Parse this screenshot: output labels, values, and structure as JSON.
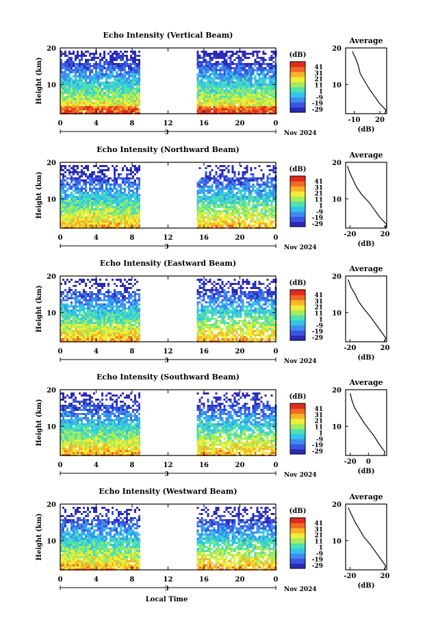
{
  "page": {
    "xlabel": "Local Time",
    "date_label": "3",
    "month_label": "Nov 2024"
  },
  "colorbar": {
    "unit": "(dB)",
    "ticks": [
      "41",
      "31",
      "21",
      "11",
      "1",
      "-9",
      "-19",
      "-29"
    ],
    "range": [
      -29,
      41
    ]
  },
  "colors": {
    "scale": [
      "#2b2ab8",
      "#3a55e0",
      "#3f8cf0",
      "#32c4e8",
      "#4fe0b0",
      "#a8ec5a",
      "#f0ee3a",
      "#f8b428",
      "#f06824",
      "#e02a1e"
    ]
  },
  "chart_data": [
    {
      "type": "heatmap",
      "title": "Echo Intensity (Vertical Beam)",
      "ylabel": "Height (km)",
      "xlabel": "Local Time",
      "x_ticks": [
        "0",
        "4",
        "8",
        "12",
        "16",
        "20",
        "0"
      ],
      "y_ticks": [
        "20",
        "10"
      ],
      "xlim": [
        0,
        24
      ],
      "ylim": [
        2,
        20
      ],
      "data_ranges": [
        [
          0,
          8.8
        ],
        [
          15.2,
          24
        ]
      ],
      "average": {
        "title": "Average",
        "xlabel": "(dB)",
        "x_ticks": [
          "-10",
          "20"
        ],
        "y_ticks": [
          "20",
          "10"
        ],
        "xlim": [
          -20,
          28
        ],
        "heights": [
          19,
          17,
          15,
          13,
          11,
          9,
          7,
          5,
          3,
          2
        ],
        "values": [
          -12,
          -8,
          -5,
          -3,
          2,
          7,
          13,
          19,
          27,
          26
        ]
      }
    },
    {
      "type": "heatmap",
      "title": "Echo Intensity (Northward Beam)",
      "ylabel": "Height (km)",
      "xlabel": "Local Time",
      "x_ticks": [
        "0",
        "4",
        "8",
        "12",
        "16",
        "20",
        "0"
      ],
      "y_ticks": [
        "20",
        "10"
      ],
      "xlim": [
        0,
        24
      ],
      "ylim": [
        2,
        20
      ],
      "data_ranges": [
        [
          0,
          8.8
        ],
        [
          15.2,
          24
        ]
      ],
      "average": {
        "title": "Average",
        "xlabel": "(dB)",
        "x_ticks": [
          "-20",
          "20"
        ],
        "y_ticks": [
          "20",
          "10"
        ],
        "xlim": [
          -25,
          22
        ],
        "heights": [
          19,
          17,
          15,
          13,
          11,
          9,
          7,
          5,
          3,
          2
        ],
        "values": [
          -23,
          -20,
          -16,
          -12,
          -6,
          2,
          8,
          14,
          22,
          20
        ]
      }
    },
    {
      "type": "heatmap",
      "title": "Echo Intensity (Eastward Beam)",
      "ylabel": "Height (km)",
      "xlabel": "Local Time",
      "x_ticks": [
        "0",
        "4",
        "8",
        "12",
        "16",
        "20",
        "0"
      ],
      "y_ticks": [
        "20",
        "10"
      ],
      "xlim": [
        0,
        24
      ],
      "ylim": [
        2,
        20
      ],
      "data_ranges": [
        [
          0,
          8.8
        ],
        [
          15.2,
          24
        ]
      ],
      "average": {
        "title": "Average",
        "xlabel": "(dB)",
        "x_ticks": [
          "-20",
          "20"
        ],
        "y_ticks": [
          "20",
          "10"
        ],
        "xlim": [
          -25,
          22
        ],
        "heights": [
          19,
          17,
          15,
          13,
          11,
          9,
          7,
          5,
          3,
          2
        ],
        "values": [
          -22,
          -19,
          -14,
          -10,
          -4,
          3,
          9,
          15,
          21,
          19
        ]
      }
    },
    {
      "type": "heatmap",
      "title": "Echo Intensity (Southward Beam)",
      "ylabel": "Height (km)",
      "xlabel": "Local Time",
      "x_ticks": [
        "0",
        "4",
        "8",
        "12",
        "16",
        "20",
        "0"
      ],
      "y_ticks": [
        "20",
        "10"
      ],
      "xlim": [
        0,
        24
      ],
      "ylim": [
        2,
        20
      ],
      "data_ranges": [
        [
          0,
          8.8
        ],
        [
          15.2,
          24
        ]
      ],
      "average": {
        "title": "Average",
        "xlabel": "(dB)",
        "x_ticks": [
          "-20",
          "0"
        ],
        "y_ticks": [
          "20",
          "10"
        ],
        "xlim": [
          -25,
          20
        ],
        "heights": [
          19,
          17,
          15,
          13,
          11,
          9,
          7,
          5,
          3,
          2
        ],
        "values": [
          -20,
          -18,
          -15,
          -10,
          -5,
          1,
          7,
          12,
          18,
          17
        ]
      }
    },
    {
      "type": "heatmap",
      "title": "Echo Intensity (Westward Beam)",
      "ylabel": "Height (km)",
      "xlabel": "Local Time",
      "x_ticks": [
        "0",
        "4",
        "8",
        "12",
        "16",
        "20",
        "0"
      ],
      "y_ticks": [
        "20",
        "10"
      ],
      "xlim": [
        0,
        24
      ],
      "ylim": [
        2,
        20
      ],
      "data_ranges": [
        [
          0,
          8.8
        ],
        [
          15.2,
          24
        ]
      ],
      "average": {
        "title": "Average",
        "xlabel": "(dB)",
        "x_ticks": [
          "-20",
          "20"
        ],
        "y_ticks": [
          "20",
          "10"
        ],
        "xlim": [
          -25,
          22
        ],
        "heights": [
          19,
          17,
          15,
          13,
          11,
          9,
          7,
          5,
          3,
          2
        ],
        "values": [
          -22,
          -18,
          -14,
          -9,
          -4,
          3,
          9,
          15,
          21,
          19
        ]
      }
    }
  ]
}
